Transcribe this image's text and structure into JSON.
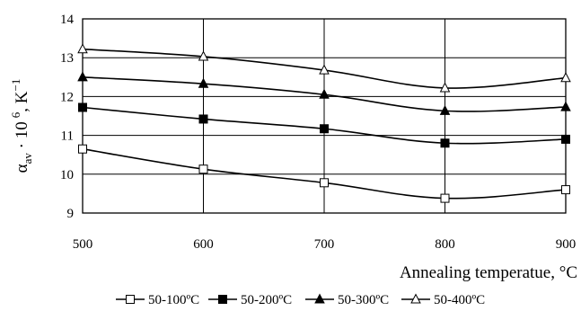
{
  "chart_data": {
    "type": "line",
    "xlabel": "Annealing temperatue, °C",
    "ylabel": {
      "symbol": "α",
      "subscript": "av",
      "mid": " · 10",
      "superscript": "6",
      "unit": ", K",
      "unit_sup": "−1"
    },
    "x": [
      500,
      600,
      700,
      800,
      900
    ],
    "xticks": [
      "500",
      "600",
      "700",
      "800",
      "900"
    ],
    "yticks": [
      "9",
      "10",
      "11",
      "12",
      "13",
      "14"
    ],
    "xlim": [
      500,
      900
    ],
    "ylim": [
      9,
      14
    ],
    "grid": true,
    "legend_position": "bottom",
    "series": [
      {
        "name": "50-100ºC",
        "marker": "open-square",
        "values": [
          10.65,
          10.13,
          9.78,
          9.38,
          9.6
        ]
      },
      {
        "name": "50-200ºC",
        "marker": "filled-square",
        "values": [
          11.72,
          11.42,
          11.17,
          10.8,
          10.9
        ]
      },
      {
        "name": "50-300ºC",
        "marker": "filled-triangle",
        "values": [
          12.5,
          12.33,
          12.05,
          11.63,
          11.73
        ]
      },
      {
        "name": "50-400ºC",
        "marker": "open-triangle",
        "values": [
          13.22,
          13.03,
          12.68,
          12.22,
          12.48
        ]
      }
    ]
  }
}
